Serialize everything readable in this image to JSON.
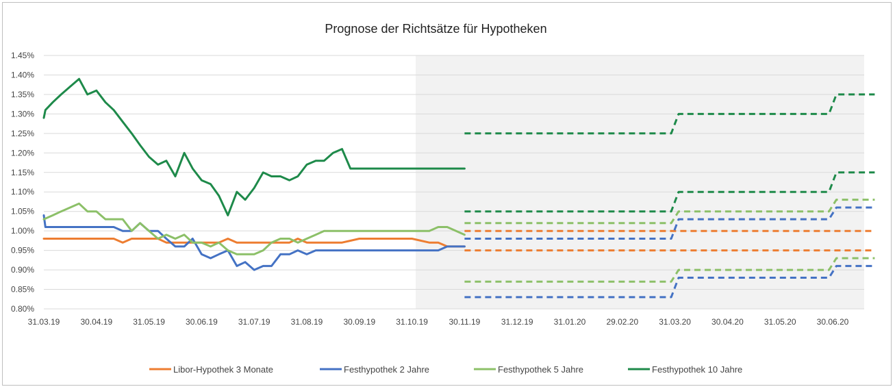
{
  "chart_data": {
    "type": "line",
    "title": "Prognose der Richtsätze für Hypotheken",
    "xlabel": "",
    "ylabel": "",
    "ylim": [
      0.8,
      1.45
    ],
    "y_ticks": [
      "0.80%",
      "0.85%",
      "0.90%",
      "0.95%",
      "1.00%",
      "1.05%",
      "1.10%",
      "1.15%",
      "1.20%",
      "1.25%",
      "1.30%",
      "1.35%",
      "1.40%",
      "1.45%"
    ],
    "y_tick_values": [
      0.8,
      0.85,
      0.9,
      0.95,
      1.0,
      1.05,
      1.1,
      1.15,
      1.2,
      1.25,
      1.3,
      1.35,
      1.4,
      1.45
    ],
    "x_ticks": [
      "31.03.19",
      "30.04.19",
      "31.05.19",
      "30.06.19",
      "31.07.19",
      "31.08.19",
      "30.09.19",
      "31.10.19",
      "30.11.19",
      "31.12.19",
      "31.01.20",
      "29.02.20",
      "31.03.20",
      "30.04.20",
      "31.05.20",
      "30.06.20"
    ],
    "x_tick_positions": [
      0,
      1,
      2,
      3,
      4,
      5,
      6,
      7,
      8,
      9,
      10,
      11,
      12,
      13,
      14,
      15
    ],
    "x_range": [
      0,
      15.8
    ],
    "forecast_region_start": 7.07,
    "grid": true,
    "legend_position": "bottom",
    "series": [
      {
        "name": "Libor-Hypothek 3 Monate",
        "color": "#ED7D31",
        "x": [
          0,
          0.33,
          0.67,
          1.0,
          1.33,
          1.5,
          1.67,
          2.0,
          2.17,
          2.33,
          2.67,
          3.0,
          3.33,
          3.5,
          3.67,
          4.0,
          4.33,
          4.67,
          4.83,
          5.0,
          5.33,
          5.67,
          6.0,
          6.33,
          6.67,
          7.0,
          7.33,
          7.5,
          7.67,
          8.0
        ],
        "values": [
          0.98,
          0.98,
          0.98,
          0.98,
          0.98,
          0.97,
          0.98,
          0.98,
          0.98,
          0.97,
          0.97,
          0.97,
          0.97,
          0.98,
          0.97,
          0.97,
          0.97,
          0.97,
          0.98,
          0.97,
          0.97,
          0.97,
          0.98,
          0.98,
          0.98,
          0.98,
          0.97,
          0.97,
          0.96,
          0.96
        ]
      },
      {
        "name": "Festhypothek 2 Jahre",
        "color": "#4472C4",
        "x": [
          0,
          0.03,
          0.33,
          0.67,
          1.0,
          1.33,
          1.5,
          1.67,
          1.83,
          2.0,
          2.17,
          2.33,
          2.5,
          2.67,
          2.83,
          3.0,
          3.17,
          3.33,
          3.5,
          3.67,
          3.83,
          4.0,
          4.17,
          4.33,
          4.5,
          4.67,
          4.83,
          5.0,
          5.17,
          5.33,
          5.5,
          5.67,
          5.83,
          6.0,
          6.17,
          6.33,
          6.5,
          6.67,
          6.83,
          7.0,
          7.33,
          7.5,
          7.67,
          8.0
        ],
        "values": [
          1.04,
          1.01,
          1.01,
          1.01,
          1.01,
          1.01,
          1.0,
          1.0,
          1.02,
          1.0,
          1.0,
          0.98,
          0.96,
          0.96,
          0.98,
          0.94,
          0.93,
          0.94,
          0.95,
          0.91,
          0.92,
          0.9,
          0.91,
          0.91,
          0.94,
          0.94,
          0.95,
          0.94,
          0.95,
          0.95,
          0.95,
          0.95,
          0.95,
          0.95,
          0.95,
          0.95,
          0.95,
          0.95,
          0.95,
          0.95,
          0.95,
          0.95,
          0.96,
          0.96
        ]
      },
      {
        "name": "Festhypothek 5 Jahre",
        "color": "#8CC068",
        "x": [
          0,
          0.17,
          0.33,
          0.5,
          0.67,
          0.83,
          1.0,
          1.17,
          1.33,
          1.5,
          1.67,
          1.83,
          2.0,
          2.17,
          2.33,
          2.5,
          2.67,
          2.83,
          3.0,
          3.17,
          3.33,
          3.5,
          3.67,
          3.83,
          4.0,
          4.17,
          4.33,
          4.5,
          4.67,
          4.83,
          5.0,
          5.17,
          5.33,
          5.5,
          5.67,
          5.83,
          6.0,
          6.17,
          6.33,
          6.5,
          6.67,
          6.83,
          7.0,
          7.17,
          7.33,
          7.5,
          7.67,
          8.0
        ],
        "values": [
          1.03,
          1.04,
          1.05,
          1.06,
          1.07,
          1.05,
          1.05,
          1.03,
          1.03,
          1.03,
          1.0,
          1.02,
          1.0,
          0.98,
          0.99,
          0.98,
          0.99,
          0.97,
          0.97,
          0.96,
          0.97,
          0.95,
          0.94,
          0.94,
          0.94,
          0.95,
          0.97,
          0.98,
          0.98,
          0.97,
          0.98,
          0.99,
          1.0,
          1.0,
          1.0,
          1.0,
          1.0,
          1.0,
          1.0,
          1.0,
          1.0,
          1.0,
          1.0,
          1.0,
          1.0,
          1.01,
          1.01,
          0.99
        ]
      },
      {
        "name": "Festhypothek 10 Jahre",
        "color": "#1E8A4A",
        "x": [
          0,
          0.03,
          0.17,
          0.33,
          0.5,
          0.67,
          0.83,
          1.0,
          1.17,
          1.33,
          1.5,
          1.67,
          1.83,
          2.0,
          2.17,
          2.33,
          2.5,
          2.67,
          2.83,
          3.0,
          3.17,
          3.33,
          3.5,
          3.67,
          3.83,
          4.0,
          4.17,
          4.33,
          4.5,
          4.67,
          4.83,
          5.0,
          5.17,
          5.33,
          5.5,
          5.67,
          5.83,
          6.0,
          6.17,
          6.33,
          6.5,
          6.67,
          6.83,
          7.0,
          7.17,
          7.33,
          7.5,
          7.67,
          7.83,
          8.0
        ],
        "values": [
          1.29,
          1.31,
          1.33,
          1.35,
          1.37,
          1.39,
          1.35,
          1.36,
          1.33,
          1.31,
          1.28,
          1.25,
          1.22,
          1.19,
          1.17,
          1.18,
          1.14,
          1.2,
          1.16,
          1.13,
          1.12,
          1.09,
          1.04,
          1.1,
          1.08,
          1.11,
          1.15,
          1.14,
          1.14,
          1.13,
          1.14,
          1.17,
          1.18,
          1.18,
          1.2,
          1.21,
          1.16,
          1.16,
          1.16,
          1.16,
          1.16,
          1.16,
          1.16,
          1.16,
          1.16,
          1.16,
          1.16,
          1.16,
          1.16,
          1.16
        ]
      }
    ],
    "forecast_series": [
      {
        "name": "Libor-Hypothek 3 Monate",
        "color": "#ED7D31",
        "x": [
          8.0,
          12.0,
          15.8
        ],
        "values": [
          1.0,
          1.0,
          1.0
        ]
      },
      {
        "name": "Libor-Hypothek 3 Monate",
        "color": "#ED7D31",
        "x": [
          8.0,
          12.0,
          15.8
        ],
        "values": [
          0.95,
          0.95,
          0.95
        ]
      },
      {
        "name": "Festhypothek 2 Jahre",
        "color": "#4472C4",
        "x": [
          8.0,
          11.93,
          12.07,
          14.93,
          15.07,
          15.8
        ],
        "values": [
          0.98,
          0.98,
          1.03,
          1.03,
          1.06,
          1.06
        ]
      },
      {
        "name": "Festhypothek 2 Jahre",
        "color": "#4472C4",
        "x": [
          8.0,
          11.93,
          12.07,
          14.93,
          15.07,
          15.8
        ],
        "values": [
          0.83,
          0.83,
          0.88,
          0.88,
          0.91,
          0.91
        ]
      },
      {
        "name": "Festhypothek 5 Jahre",
        "color": "#8CC068",
        "x": [
          8.0,
          11.93,
          12.07,
          14.93,
          15.07,
          15.8
        ],
        "values": [
          1.02,
          1.02,
          1.05,
          1.05,
          1.08,
          1.08
        ]
      },
      {
        "name": "Festhypothek 5 Jahre",
        "color": "#8CC068",
        "x": [
          8.0,
          11.93,
          12.07,
          14.93,
          15.07,
          15.8
        ],
        "values": [
          0.87,
          0.87,
          0.9,
          0.9,
          0.93,
          0.93
        ]
      },
      {
        "name": "Festhypothek 10 Jahre",
        "color": "#1E8A4A",
        "x": [
          8.0,
          11.93,
          12.07,
          14.93,
          15.07,
          15.8
        ],
        "values": [
          1.25,
          1.25,
          1.3,
          1.3,
          1.35,
          1.35
        ]
      },
      {
        "name": "Festhypothek 10 Jahre",
        "color": "#1E8A4A",
        "x": [
          8.0,
          11.93,
          12.07,
          14.93,
          15.07,
          15.8
        ],
        "values": [
          1.05,
          1.05,
          1.1,
          1.1,
          1.15,
          1.15
        ]
      }
    ],
    "forecast_shading_color": "#F2F2F2",
    "grid_color": "#D9D9D9"
  }
}
